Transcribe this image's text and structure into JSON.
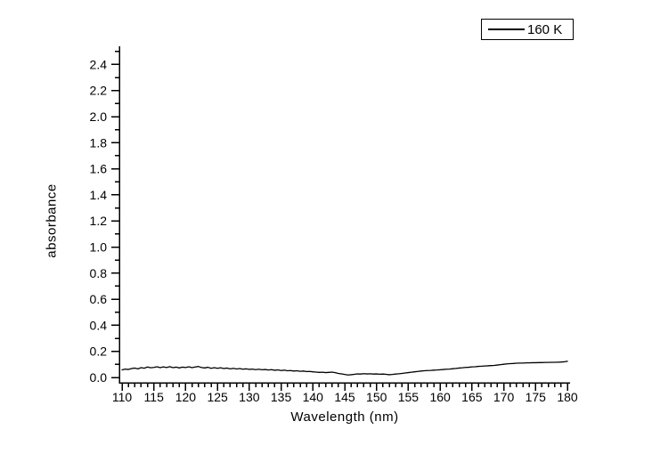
{
  "figure": {
    "background": "#ffffff",
    "axis_color": "#000000"
  },
  "chart_data": {
    "type": "line",
    "title": "",
    "xlabel": "Wavelength (nm)",
    "ylabel": "absorbance",
    "xlim": [
      110,
      180
    ],
    "ylim": [
      0.0,
      2.4
    ],
    "x_major_ticks": [
      110,
      115,
      120,
      125,
      130,
      135,
      140,
      145,
      150,
      155,
      160,
      165,
      170,
      175,
      180
    ],
    "x_minor_step": 1,
    "y_major_ticks": [
      0.0,
      0.2,
      0.4,
      0.6,
      0.8,
      1.0,
      1.2,
      1.4,
      1.6,
      1.8,
      2.0,
      2.2,
      2.4
    ],
    "y_minor_step": 0.1,
    "grid": false,
    "legend": {
      "position": "top-right",
      "border": true,
      "entries": [
        {
          "label": "160 K",
          "color": "#000000"
        }
      ]
    },
    "series": [
      {
        "name": "160 K",
        "color": "#000000",
        "x": [
          110,
          110.5,
          111,
          111.5,
          112,
          112.5,
          113,
          113.5,
          114,
          114.5,
          115,
          115.5,
          116,
          116.5,
          117,
          117.5,
          118,
          118.5,
          119,
          119.5,
          120,
          120.5,
          121,
          121.5,
          122,
          122.5,
          123,
          123.5,
          124,
          124.5,
          125,
          125.5,
          126,
          126.5,
          127,
          127.5,
          128,
          128.5,
          129,
          129.5,
          130,
          130.5,
          131,
          131.5,
          132,
          132.5,
          133,
          133.5,
          134,
          134.5,
          135,
          135.5,
          136,
          136.5,
          137,
          137.5,
          138,
          138.5,
          139,
          139.5,
          140,
          140.5,
          141,
          141.5,
          142,
          142.5,
          143,
          143.5,
          144,
          144.5,
          145,
          145.5,
          146,
          146.5,
          147,
          147.5,
          148,
          148.5,
          149,
          149.5,
          150,
          150.5,
          151,
          151.5,
          152,
          152.5,
          153,
          153.5,
          154,
          154.5,
          155,
          155.5,
          156,
          156.5,
          157,
          157.5,
          158,
          158.5,
          159,
          159.5,
          160,
          160.5,
          161,
          161.5,
          162,
          162.5,
          163,
          163.5,
          164,
          164.5,
          165,
          165.5,
          166,
          166.5,
          167,
          167.5,
          168,
          168.5,
          169,
          169.5,
          170,
          170.5,
          171,
          171.5,
          172,
          172.5,
          173,
          173.5,
          174,
          174.5,
          175,
          175.5,
          176,
          176.5,
          177,
          177.5,
          178,
          178.5,
          179,
          179.5,
          180
        ],
        "y": [
          0.058,
          0.064,
          0.061,
          0.068,
          0.072,
          0.066,
          0.075,
          0.071,
          0.08,
          0.074,
          0.077,
          0.082,
          0.075,
          0.081,
          0.076,
          0.083,
          0.075,
          0.079,
          0.073,
          0.079,
          0.076,
          0.082,
          0.075,
          0.08,
          0.084,
          0.076,
          0.073,
          0.078,
          0.07,
          0.075,
          0.07,
          0.074,
          0.068,
          0.072,
          0.066,
          0.07,
          0.065,
          0.068,
          0.063,
          0.066,
          0.062,
          0.064,
          0.06,
          0.063,
          0.059,
          0.061,
          0.057,
          0.06,
          0.055,
          0.058,
          0.053,
          0.056,
          0.051,
          0.053,
          0.049,
          0.051,
          0.047,
          0.049,
          0.045,
          0.046,
          0.043,
          0.041,
          0.039,
          0.04,
          0.037,
          0.039,
          0.041,
          0.037,
          0.031,
          0.027,
          0.023,
          0.019,
          0.021,
          0.024,
          0.027,
          0.026,
          0.029,
          0.027,
          0.028,
          0.026,
          0.027,
          0.025,
          0.026,
          0.024,
          0.021,
          0.023,
          0.026,
          0.028,
          0.031,
          0.034,
          0.037,
          0.04,
          0.043,
          0.046,
          0.049,
          0.051,
          0.053,
          0.054,
          0.056,
          0.057,
          0.059,
          0.061,
          0.063,
          0.064,
          0.067,
          0.069,
          0.072,
          0.074,
          0.077,
          0.078,
          0.081,
          0.082,
          0.085,
          0.086,
          0.088,
          0.089,
          0.091,
          0.092,
          0.095,
          0.098,
          0.101,
          0.104,
          0.106,
          0.107,
          0.109,
          0.11,
          0.11,
          0.112,
          0.112,
          0.113,
          0.113,
          0.114,
          0.114,
          0.115,
          0.115,
          0.116,
          0.116,
          0.117,
          0.118,
          0.12,
          0.124
        ]
      }
    ]
  }
}
